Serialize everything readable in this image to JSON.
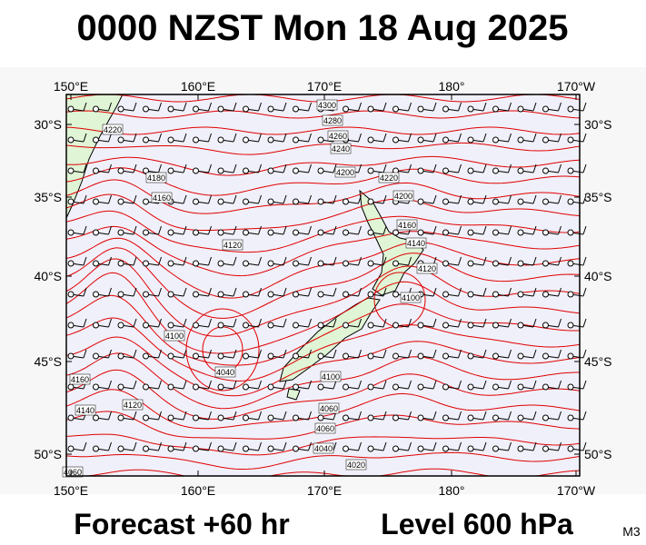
{
  "header": {
    "title": "0000 NZST Mon 18 Aug 2025"
  },
  "map": {
    "lon_labels": [
      "150°E",
      "160°E",
      "170°E",
      "180°",
      "170°W"
    ],
    "lat_labels": [
      "30°S",
      "35°S",
      "40°S",
      "45°S",
      "50°S"
    ],
    "contour_labels": [
      "4300",
      "4280",
      "4260",
      "4240",
      "4220",
      "4220",
      "4200",
      "4200",
      "4180",
      "4160",
      "4160",
      "4140",
      "4120",
      "4120",
      "4100",
      "4100",
      "4040",
      "4160",
      "4140",
      "4120",
      "4100",
      "4060",
      "4060",
      "4040",
      "4020",
      "4060"
    ]
  },
  "footer": {
    "forecast": "Forecast +60 hr",
    "level": "Level 600 hPa",
    "code": "M3"
  }
}
